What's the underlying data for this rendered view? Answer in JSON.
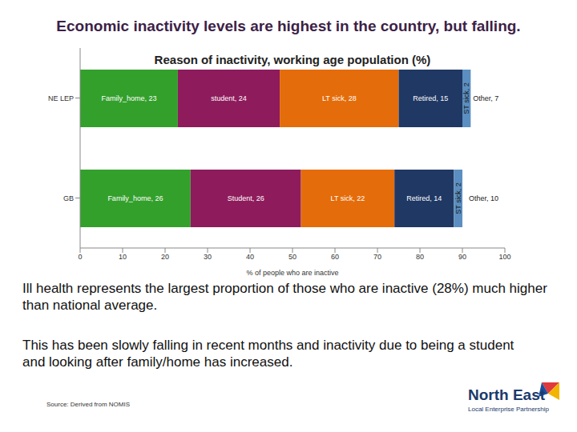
{
  "title": "Economic inactivity levels are highest in the country, but falling.",
  "chart_data": {
    "type": "bar",
    "title": "Reason of inactivity, working age population (%)",
    "x_label": "% of people who are inactive",
    "orientation": "horizontal",
    "stacked": true,
    "data_labels": true,
    "grid": false,
    "categories": [
      "NE LEP",
      "GB"
    ],
    "xlim": [
      0,
      100
    ],
    "xticks": [
      0,
      10,
      20,
      30,
      40,
      50,
      60,
      70,
      80,
      90,
      100
    ],
    "series": [
      {
        "name": "Family_home",
        "color": "#33a02c",
        "values": [
          23,
          26
        ],
        "value_labels": [
          "Family_home, 23",
          "Family_home, 26"
        ]
      },
      {
        "name": "Student",
        "color": "#8e1b5c",
        "values": [
          24,
          26
        ],
        "value_labels": [
          "student, 24",
          "Student, 26"
        ]
      },
      {
        "name": "LT sick",
        "color": "#e46c0a",
        "values": [
          28,
          22
        ],
        "value_labels": [
          "LT sick, 28",
          "LT sick, 22"
        ]
      },
      {
        "name": "Retired",
        "color": "#1f3864",
        "values": [
          15,
          14
        ],
        "value_labels": [
          "Retired, 15",
          "Retired, 14"
        ]
      },
      {
        "name": "ST sick",
        "color": "#5b8fc1",
        "values": [
          2,
          2
        ],
        "value_labels": [
          "ST sick, 2",
          "ST sick, 2"
        ]
      },
      {
        "name": "Other",
        "color": "#ffffff",
        "values": [
          7,
          10
        ],
        "value_labels": [
          "Other, 7",
          "Other, 10"
        ]
      }
    ]
  },
  "notes": [
    "Ill health represents the largest proportion of those who are inactive (28%) much higher than national average.",
    "This has been slowly falling in recent months and inactivity due to being a student and looking after family/home has increased."
  ],
  "source": "Source: Derived from NOMIS",
  "logo": {
    "title": "North East",
    "subtitle": "Local Enterprise Partnership"
  }
}
